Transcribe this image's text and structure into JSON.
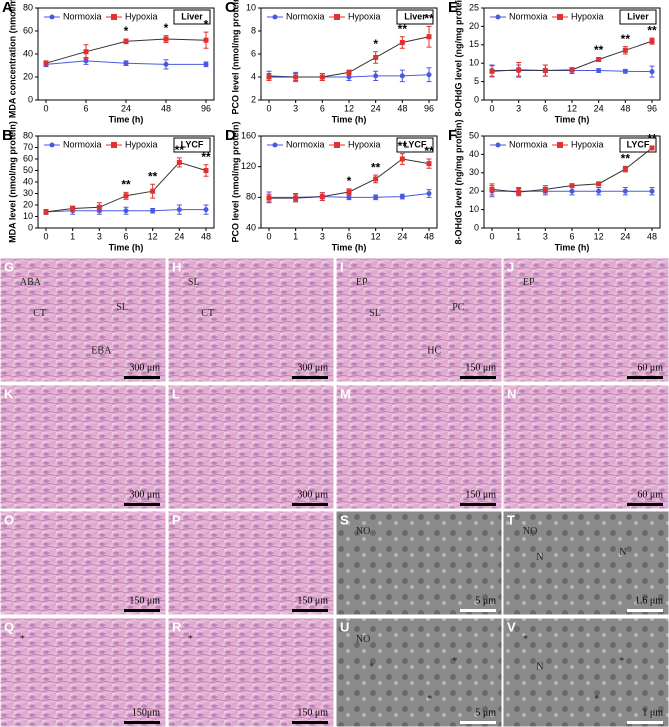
{
  "chart_data": [
    {
      "type": "line",
      "letter": "A",
      "tissue": "Liver",
      "ylabel": "MDA concentration (nmol/mL)",
      "xlabel": "Time (h)",
      "categories": [
        "0",
        "6",
        "24",
        "48",
        "96"
      ],
      "ylim": [
        0,
        80
      ],
      "yticks": [
        0,
        20,
        40,
        60,
        80
      ],
      "series": [
        {
          "name": "Normoxia",
          "color": "#4a5ae0",
          "values": [
            31,
            34,
            32,
            31,
            31
          ],
          "errors": [
            2,
            3,
            2,
            4,
            2
          ]
        },
        {
          "name": "Hypoxia",
          "color": "#e03030",
          "values": [
            32,
            42,
            51,
            53,
            52
          ],
          "errors": [
            2,
            6,
            2,
            3,
            7
          ]
        }
      ],
      "annotations": [
        null,
        null,
        "*",
        "*",
        "*"
      ]
    },
    {
      "type": "line",
      "letter": "C",
      "tissue": "Liver",
      "ylabel": "PCO level (nmol/mg protein)",
      "xlabel": "Time (h)",
      "categories": [
        "0",
        "3",
        "6",
        "12",
        "24",
        "48",
        "96"
      ],
      "ylim": [
        2,
        10
      ],
      "yticks": [
        2,
        4,
        6,
        8,
        10
      ],
      "series": [
        {
          "name": "Normoxia",
          "color": "#4a5ae0",
          "values": [
            4.1,
            4.0,
            4.0,
            4.0,
            4.1,
            4.1,
            4.2
          ],
          "errors": [
            0.4,
            0.4,
            0.3,
            0.3,
            0.4,
            0.5,
            0.6
          ]
        },
        {
          "name": "Hypoxia",
          "color": "#e03030",
          "values": [
            4.0,
            4.0,
            4.0,
            4.4,
            5.7,
            7.0,
            7.5
          ],
          "errors": [
            0.3,
            0.3,
            0.3,
            0.2,
            0.5,
            0.5,
            0.9
          ]
        }
      ],
      "annotations": [
        null,
        null,
        null,
        null,
        "*",
        "**",
        "**"
      ]
    },
    {
      "type": "line",
      "letter": "E",
      "tissue": "Liver",
      "ylabel": "8-OHdG level (ng/mg protein)",
      "xlabel": "Time (h)",
      "categories": [
        "0",
        "3",
        "6",
        "12",
        "24",
        "48",
        "96"
      ],
      "ylim": [
        0,
        25
      ],
      "yticks": [
        0,
        5,
        10,
        15,
        20,
        25
      ],
      "series": [
        {
          "name": "Normoxia",
          "color": "#4a5ae0",
          "values": [
            8,
            8,
            8,
            8,
            8,
            7.8,
            7.7
          ],
          "errors": [
            1.5,
            1.5,
            1.5,
            0.8,
            0.5,
            0.5,
            1.5
          ]
        },
        {
          "name": "Hypoxia",
          "color": "#e03030",
          "values": [
            7.8,
            8.2,
            8,
            8.2,
            11,
            13.5,
            16
          ],
          "errors": [
            1.5,
            2,
            1.5,
            0.5,
            0.5,
            1,
            0.8
          ]
        }
      ],
      "annotations": [
        null,
        null,
        null,
        null,
        "**",
        "**",
        "**"
      ]
    },
    {
      "type": "line",
      "letter": "B",
      "tissue": "LYCF",
      "ylabel": "MDA level (nmol/mg protein)",
      "xlabel": "Time (h)",
      "categories": [
        "0",
        "1",
        "3",
        "6",
        "12",
        "24",
        "48"
      ],
      "ylim": [
        0,
        80
      ],
      "yticks": [
        0,
        10,
        20,
        30,
        40,
        50,
        60,
        70,
        80
      ],
      "series": [
        {
          "name": "Normoxia",
          "color": "#4a5ae0",
          "values": [
            14,
            15,
            15,
            15,
            15,
            16,
            16
          ],
          "errors": [
            2,
            3,
            3,
            3,
            2,
            4,
            4
          ]
        },
        {
          "name": "Hypoxia",
          "color": "#e03030",
          "values": [
            14,
            17,
            18,
            28,
            32,
            57,
            50
          ],
          "errors": [
            2,
            2,
            4,
            3,
            6,
            4,
            5
          ]
        }
      ],
      "annotations": [
        null,
        null,
        null,
        "**",
        "**",
        "**",
        "**"
      ]
    },
    {
      "type": "line",
      "letter": "D",
      "tissue": "LYCF",
      "ylabel": "PCO level (nmol/mg protein)",
      "xlabel": "Time (h)",
      "categories": [
        "0",
        "1",
        "3",
        "6",
        "12",
        "24",
        "48"
      ],
      "ylim": [
        40,
        160
      ],
      "yticks": [
        40,
        80,
        120,
        160
      ],
      "series": [
        {
          "name": "Normoxia",
          "color": "#4a5ae0",
          "values": [
            80,
            80,
            81,
            80,
            80,
            81,
            85
          ],
          "errors": [
            7,
            5,
            5,
            3,
            3,
            3,
            5
          ]
        },
        {
          "name": "Hypoxia",
          "color": "#e03030",
          "values": [
            79,
            79,
            81,
            87,
            104,
            130,
            124
          ],
          "errors": [
            5,
            5,
            5,
            4,
            5,
            7,
            6
          ]
        }
      ],
      "annotations": [
        null,
        null,
        null,
        "*",
        "**",
        "**",
        "**"
      ]
    },
    {
      "type": "line",
      "letter": "F",
      "tissue": "LYCF",
      "ylabel": "8-OHdG level (ng/mg protein)",
      "xlabel": "Time (h)",
      "categories": [
        "0",
        "1",
        "3",
        "6",
        "12",
        "24",
        "48"
      ],
      "ylim": [
        0,
        50
      ],
      "yticks": [
        0,
        10,
        20,
        30,
        40,
        50
      ],
      "series": [
        {
          "name": "Normoxia",
          "color": "#4a5ae0",
          "values": [
            20,
            20,
            20,
            20,
            20,
            20,
            20
          ],
          "errors": [
            3,
            2,
            2,
            2,
            2,
            2,
            2
          ]
        },
        {
          "name": "Hypoxia",
          "color": "#e03030",
          "values": [
            21,
            19.5,
            21,
            23,
            24,
            32,
            43.5
          ],
          "errors": [
            3,
            2,
            2,
            1,
            1,
            1.5,
            1
          ]
        }
      ],
      "annotations": [
        null,
        null,
        null,
        null,
        null,
        "**",
        "**"
      ]
    }
  ],
  "micrographs": [
    {
      "letter": "G",
      "scale": "300 μm",
      "labels": [
        "ABA",
        "CT",
        "SL",
        "EBA"
      ]
    },
    {
      "letter": "H",
      "scale": "300 μm",
      "labels": [
        "SL",
        "CT"
      ]
    },
    {
      "letter": "I",
      "scale": "150 μm",
      "labels": [
        "EP",
        "SL",
        "PC",
        "HC"
      ]
    },
    {
      "letter": "J",
      "scale": "60 μm",
      "labels": [
        "EP"
      ]
    },
    {
      "letter": "K",
      "scale": "300 μm",
      "labels": []
    },
    {
      "letter": "L",
      "scale": "300 μm",
      "labels": []
    },
    {
      "letter": "M",
      "scale": "150 μm",
      "labels": []
    },
    {
      "letter": "N",
      "scale": "60 μm",
      "labels": []
    },
    {
      "letter": "O",
      "scale": "150 μm",
      "labels": []
    },
    {
      "letter": "P",
      "scale": "150 μm",
      "labels": []
    },
    {
      "letter": "S",
      "scale": "5 μm",
      "labels": [
        "NO"
      ]
    },
    {
      "letter": "T",
      "scale": "1.6 μm",
      "labels": [
        "NO",
        "N",
        "N"
      ]
    },
    {
      "letter": "Q",
      "scale": "150μm",
      "labels": [
        "*"
      ]
    },
    {
      "letter": "R",
      "scale": "150 μm",
      "labels": [
        "*"
      ]
    },
    {
      "letter": "U",
      "scale": "5 μm",
      "labels": [
        "NO",
        "*",
        "*",
        "*"
      ]
    },
    {
      "letter": "V",
      "scale": "1 μm",
      "labels": [
        "*",
        "N",
        "*",
        "*"
      ]
    }
  ]
}
